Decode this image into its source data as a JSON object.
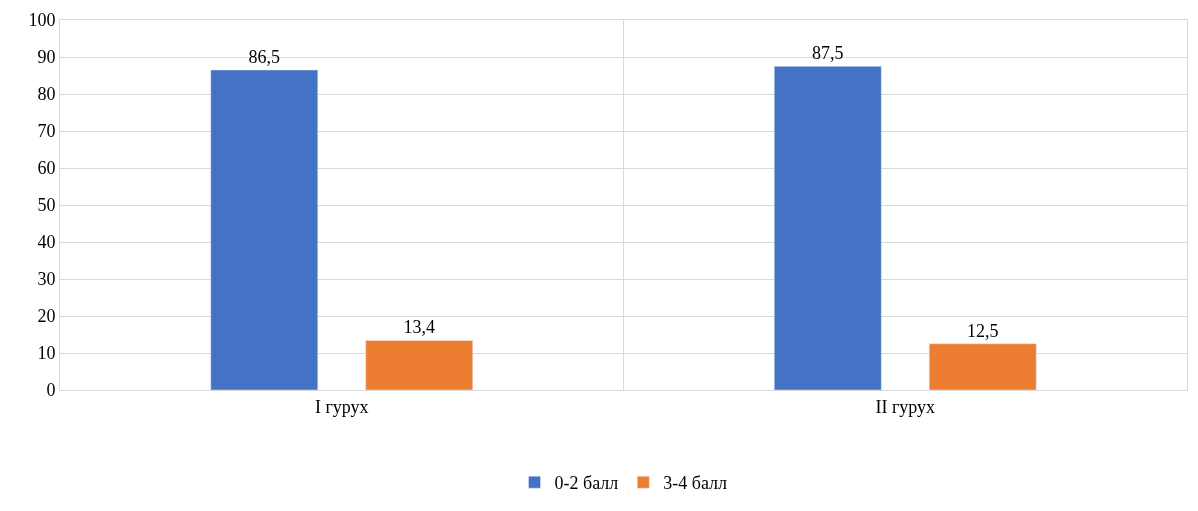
{
  "chart_data": {
    "type": "bar",
    "categories": [
      "I гурух",
      "II гурух"
    ],
    "series": [
      {
        "name": "0-2 балл",
        "color": "#4472c4",
        "values": [
          86.5,
          87.5
        ],
        "value_labels": [
          "86,5",
          "87,5"
        ]
      },
      {
        "name": "3-4 балл",
        "color": "#ed7d31",
        "values": [
          13.4,
          12.5
        ],
        "value_labels": [
          "13,4",
          "12,5"
        ]
      }
    ],
    "ylim": [
      0,
      100
    ],
    "yticks": [
      0,
      10,
      20,
      30,
      40,
      50,
      60,
      70,
      80,
      90,
      100
    ],
    "grid": true,
    "legend": "bottom"
  }
}
